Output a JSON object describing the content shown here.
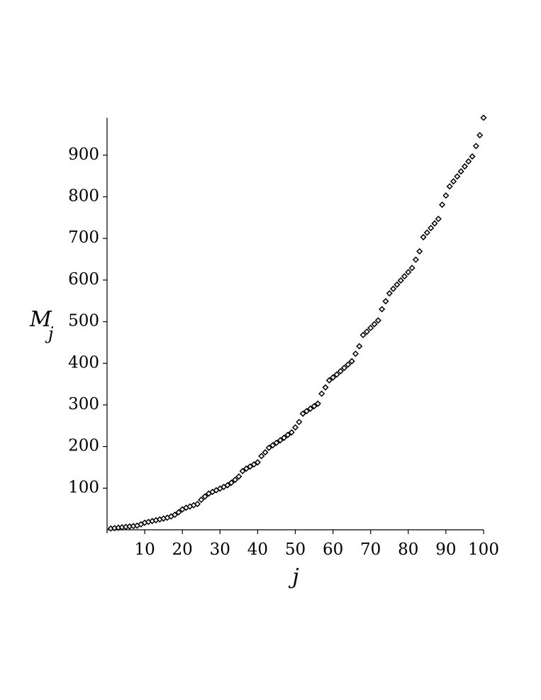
{
  "chart_data": {
    "type": "scatter",
    "x_label": "j",
    "y_label": "M",
    "y_label_subscript": "j",
    "x": [
      1,
      2,
      3,
      4,
      5,
      6,
      7,
      8,
      9,
      10,
      11,
      12,
      13,
      14,
      15,
      16,
      17,
      18,
      19,
      20,
      21,
      22,
      23,
      24,
      25,
      26,
      27,
      28,
      29,
      30,
      31,
      32,
      33,
      34,
      35,
      36,
      37,
      38,
      39,
      40,
      41,
      42,
      43,
      44,
      45,
      46,
      47,
      48,
      49,
      50,
      51,
      52,
      53,
      54,
      55,
      56,
      57,
      58,
      59,
      60,
      61,
      62,
      63,
      64,
      65,
      66,
      67,
      68,
      69,
      70,
      71,
      72,
      73,
      74,
      75,
      76,
      77,
      78,
      79,
      80,
      81,
      82,
      83,
      84,
      85,
      86,
      87,
      88,
      89,
      90,
      91,
      92,
      93,
      94,
      95,
      96,
      97,
      98,
      99,
      100
    ],
    "series": [
      {
        "color": "#000000",
        "values": [
          3,
          4,
          5,
          6,
          7,
          8,
          9,
          10,
          13,
          17,
          19,
          21,
          23,
          25,
          27,
          29,
          32,
          36,
          42,
          49,
          53,
          56,
          59,
          62,
          72,
          80,
          87,
          91,
          95,
          99,
          103,
          107,
          113,
          120,
          128,
          141,
          147,
          152,
          157,
          162,
          177,
          186,
          197,
          203,
          209,
          215,
          221,
          228,
          234,
          246,
          259,
          279,
          285,
          291,
          297,
          303,
          327,
          342,
          359,
          366,
          373,
          381,
          389,
          397,
          405,
          423,
          441,
          468,
          476,
          485,
          494,
          503,
          530,
          549,
          568,
          579,
          589,
          599,
          609,
          619,
          629,
          649,
          669,
          703,
          714,
          725,
          736,
          747,
          781,
          803,
          825,
          837,
          849,
          861,
          873,
          885,
          897,
          922,
          948,
          990
        ]
      }
    ],
    "xlim": [
      0,
      100
    ],
    "ylim": [
      0,
      990
    ],
    "xticks": [
      10,
      20,
      30,
      40,
      50,
      60,
      70,
      80,
      90,
      100
    ],
    "yticks": [
      100,
      200,
      300,
      400,
      500,
      600,
      700,
      800,
      900
    ]
  }
}
